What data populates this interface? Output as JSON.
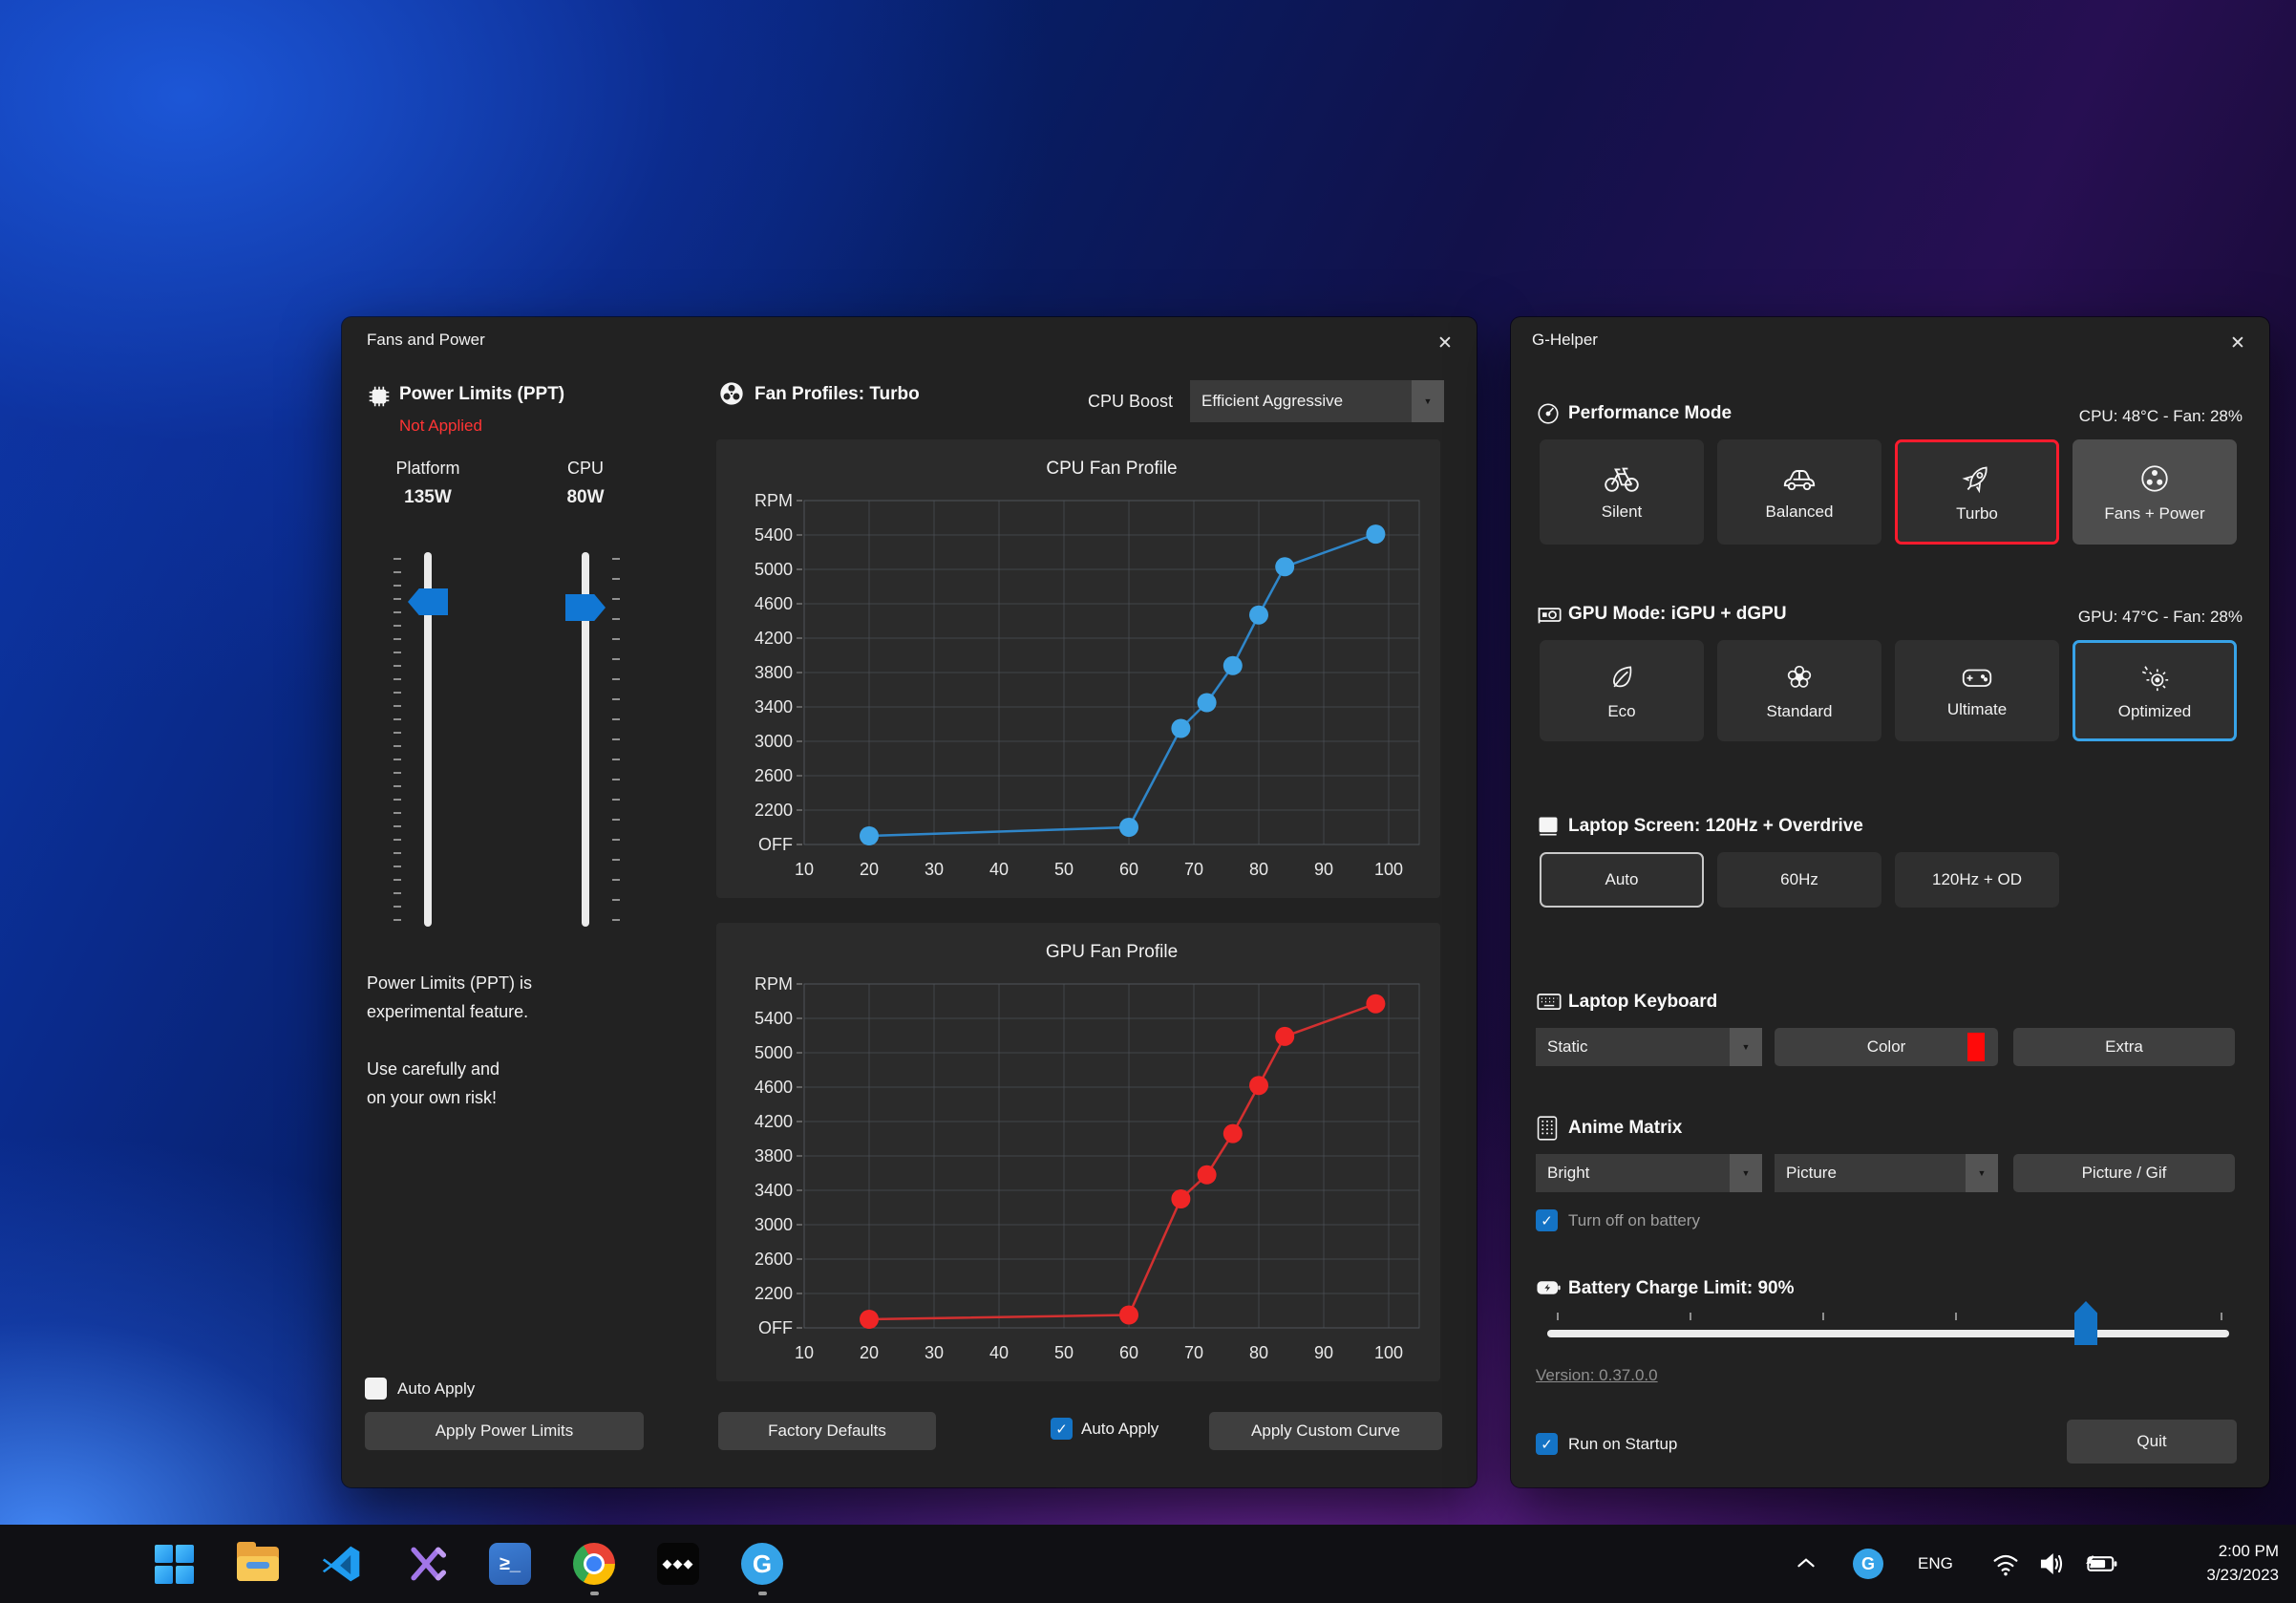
{
  "icons": {
    "close": "✕",
    "dropdown_arrow": "▼",
    "check": "✓",
    "terminal_glyph": "≥_",
    "tidal_glyph": "◆◆◆"
  },
  "fans_window": {
    "title": "Fans and Power",
    "power_limits": {
      "header": "Power Limits (PPT)",
      "status": "Not Applied",
      "columns": [
        {
          "label": "Platform",
          "value": "135W"
        },
        {
          "label": "CPU",
          "value": "80W"
        }
      ],
      "note_line1": "Power Limits (PPT) is",
      "note_line2": "experimental feature.",
      "note_line3": "Use carefully and",
      "note_line4": "on your own risk!",
      "auto_apply_label": "Auto Apply",
      "apply_button": "Apply Power Limits"
    },
    "fan_profiles": {
      "header": "Fan Profiles: Turbo",
      "cpu_boost_label": "CPU Boost",
      "cpu_boost_value": "Efficient Aggressive",
      "factory_defaults_button": "Factory Defaults",
      "auto_apply_label": "Auto Apply",
      "apply_custom_button": "Apply Custom Curve"
    }
  },
  "chart_data": [
    {
      "type": "line",
      "title": "CPU Fan Profile",
      "line_color": "#2f86c9",
      "dot_color": "#3ea3e6",
      "x": [
        20,
        60,
        68,
        72,
        76,
        80,
        84,
        98
      ],
      "y": [
        1900,
        2000,
        3150,
        3450,
        3880,
        4470,
        5030,
        5410
      ],
      "xticks": [
        10,
        20,
        30,
        40,
        50,
        60,
        70,
        80,
        90,
        100
      ],
      "yticks": [
        {
          "label": "RPM",
          "value": 5800
        },
        {
          "label": "5400",
          "value": 5400
        },
        {
          "label": "5000",
          "value": 5000
        },
        {
          "label": "4600",
          "value": 4600
        },
        {
          "label": "4200",
          "value": 4200
        },
        {
          "label": "3800",
          "value": 3800
        },
        {
          "label": "3400",
          "value": 3400
        },
        {
          "label": "3000",
          "value": 3000
        },
        {
          "label": "2600",
          "value": 2600
        },
        {
          "label": "2200",
          "value": 2200
        },
        {
          "label": "OFF",
          "value": 1800
        }
      ],
      "xlim": [
        10,
        100
      ],
      "ylim": [
        1800,
        5800
      ],
      "grid": true,
      "xlabel": "",
      "ylabel": ""
    },
    {
      "type": "line",
      "title": "GPU Fan Profile",
      "line_color": "#d33030",
      "dot_color": "#f02525",
      "x": [
        20,
        60,
        68,
        72,
        76,
        80,
        84,
        98
      ],
      "y": [
        1900,
        1950,
        3300,
        3580,
        4060,
        4620,
        5190,
        5570
      ],
      "xticks": [
        10,
        20,
        30,
        40,
        50,
        60,
        70,
        80,
        90,
        100
      ],
      "yticks": [
        {
          "label": "RPM",
          "value": 5800
        },
        {
          "label": "5400",
          "value": 5400
        },
        {
          "label": "5000",
          "value": 5000
        },
        {
          "label": "4600",
          "value": 4600
        },
        {
          "label": "4200",
          "value": 4200
        },
        {
          "label": "3800",
          "value": 3800
        },
        {
          "label": "3400",
          "value": 3400
        },
        {
          "label": "3000",
          "value": 3000
        },
        {
          "label": "2600",
          "value": 2600
        },
        {
          "label": "2200",
          "value": 2200
        },
        {
          "label": "OFF",
          "value": 1800
        }
      ],
      "xlim": [
        10,
        100
      ],
      "ylim": [
        1800,
        5800
      ],
      "grid": true,
      "xlabel": "",
      "ylabel": ""
    }
  ],
  "ghelper": {
    "title": "G-Helper",
    "performance": {
      "header": "Performance Mode",
      "status": "CPU: 48°C  -   Fan: 28%",
      "buttons": [
        {
          "label": "Silent"
        },
        {
          "label": "Balanced"
        },
        {
          "label": "Turbo"
        },
        {
          "label": "Fans + Power"
        }
      ]
    },
    "gpu": {
      "header": "GPU Mode: iGPU + dGPU",
      "status": "GPU: 47°C  -   Fan: 28%",
      "buttons": [
        {
          "label": "Eco"
        },
        {
          "label": "Standard"
        },
        {
          "label": "Ultimate"
        },
        {
          "label": "Optimized"
        }
      ]
    },
    "screen": {
      "header": "Laptop Screen: 120Hz + Overdrive",
      "buttons": [
        {
          "label": "Auto"
        },
        {
          "label": "60Hz"
        },
        {
          "label": "120Hz + OD"
        }
      ]
    },
    "keyboard": {
      "header": "Laptop Keyboard",
      "mode_value": "Static",
      "color_button": "Color",
      "swatch_color": "#ff0a0a",
      "extra_button": "Extra"
    },
    "anime": {
      "header": "Anime Matrix",
      "brightness_value": "Bright",
      "mode_value": "Picture",
      "picture_button": "Picture / Gif",
      "battery_checkbox_label": "Turn off on battery"
    },
    "battery": {
      "header": "Battery Charge Limit: 90%",
      "percent": 90
    },
    "version_link": "Version: 0.37.0.0",
    "run_on_startup_label": "Run on Startup",
    "quit_button": "Quit"
  },
  "taskbar": {
    "language": "ENG",
    "time": "2:00 PM",
    "date": "3/23/2023"
  }
}
